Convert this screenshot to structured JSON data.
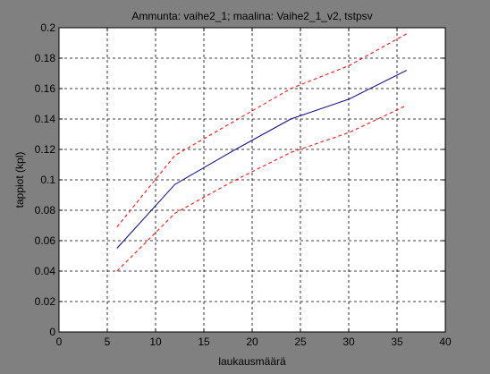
{
  "figure": {
    "background": "#808080",
    "axes_background": "#ffffff"
  },
  "chart_data": {
    "type": "line",
    "title": "Ammunta: vaihe2_1; maalina: Vaihe2_1_v2, tstpsv",
    "xlabel": "laukausmäärä",
    "ylabel": "tappiot (kpl)",
    "xlim": [
      0,
      40
    ],
    "ylim": [
      0,
      0.2
    ],
    "xticks": [
      "0",
      "5",
      "10",
      "15",
      "20",
      "25",
      "30",
      "35",
      "40"
    ],
    "yticks": [
      "0",
      "0.02",
      "0.04",
      "0.06",
      "0.08",
      "0.1",
      "0.12",
      "0.14",
      "0.16",
      "0.18",
      "0.2"
    ],
    "grid": true,
    "series": [
      {
        "color": "#00008b",
        "style": "solid",
        "x": [
          6,
          12,
          18,
          24,
          30,
          36
        ],
        "y": [
          0.055,
          0.097,
          0.119,
          0.14,
          0.153,
          0.172
        ]
      },
      {
        "color": "#ff0000",
        "style": "dashed",
        "x": [
          6,
          12,
          18,
          24,
          30,
          36
        ],
        "y": [
          0.069,
          0.116,
          0.138,
          0.16,
          0.175,
          0.196
        ]
      },
      {
        "color": "#ff0000",
        "style": "dashed",
        "x": [
          6,
          12,
          18,
          24,
          30,
          36
        ],
        "y": [
          0.04,
          0.078,
          0.099,
          0.118,
          0.131,
          0.149
        ]
      }
    ]
  }
}
